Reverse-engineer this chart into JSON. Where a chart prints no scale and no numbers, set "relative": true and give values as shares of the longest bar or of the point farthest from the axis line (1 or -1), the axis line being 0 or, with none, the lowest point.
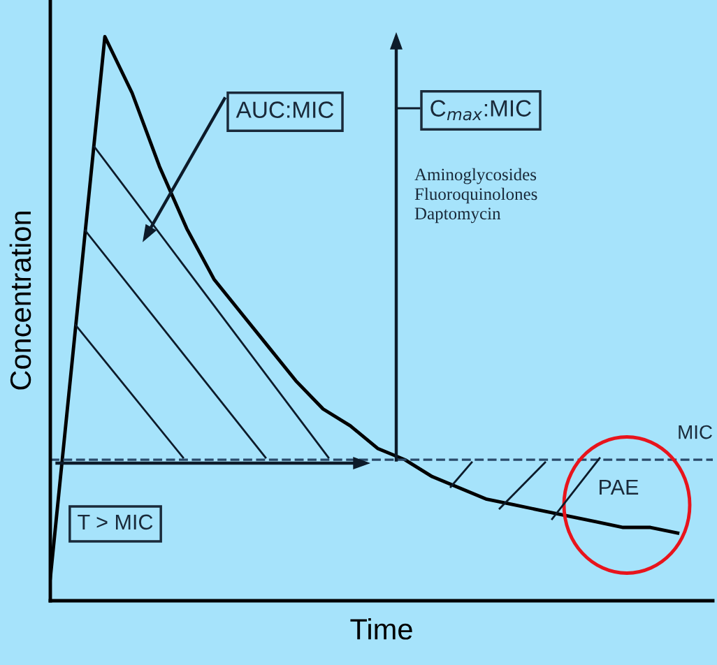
{
  "chart_data": {
    "type": "line",
    "relative": true,
    "xlabel": "Time",
    "ylabel": "Concentration",
    "categories": [
      null,
      null,
      null,
      null,
      null,
      null,
      null,
      null,
      null,
      null,
      null,
      null,
      null,
      null,
      null,
      null,
      null,
      null,
      null,
      null,
      null,
      null,
      null,
      null
    ],
    "series": [
      {
        "color": "#000000",
        "values": [
          0.04,
          0.52,
          1,
          0.9,
          0.77,
          0.66,
          0.57,
          0.51,
          0.45,
          0.39,
          0.34,
          0.31,
          0.27,
          0.25,
          0.22,
          0.2,
          0.18,
          0.17,
          0.16,
          0.15,
          0.14,
          0.13,
          0.13,
          0.12
        ]
      }
    ],
    "ref_lines": [
      {
        "axis": "y",
        "value": 0.25,
        "label": "MIC",
        "color": "#2a4a6a",
        "line_style": "dashed"
      }
    ],
    "annotations": [
      "AUC:MIC",
      "C$_{max}$:MIC",
      "Aminoglycosides\nFluoroquinolones\nDaptomycin",
      "T > MIC",
      "PAE"
    ],
    "marker": "none",
    "line_style": "solid",
    "grid": false,
    "legend": false,
    "tick_labels": false
  }
}
